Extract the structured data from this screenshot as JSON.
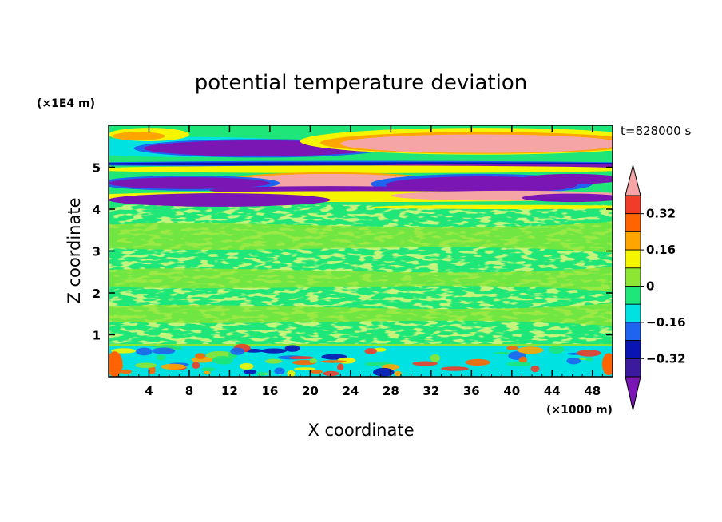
{
  "chart_data": {
    "type": "heatmap",
    "title": "potential temperature deviation",
    "xlabel": "X coordinate",
    "ylabel": "Z coordinate",
    "x_unit": "(×1000 m)",
    "y_unit": "(×1E4 m)",
    "time_label": "t=828000 s",
    "xlim": [
      0,
      50
    ],
    "ylim": [
      0,
      6
    ],
    "x_ticks": [
      "4",
      "8",
      "12",
      "16",
      "20",
      "24",
      "28",
      "32",
      "36",
      "40",
      "44",
      "48"
    ],
    "y_ticks": [
      "1",
      "2",
      "3",
      "4",
      "5"
    ],
    "colorbar": {
      "levels": [
        -0.4,
        -0.32,
        -0.24,
        -0.16,
        -0.08,
        0,
        0.08,
        0.16,
        0.24,
        0.32,
        0.4
      ],
      "labels": [
        "0.32",
        "0.16",
        "0",
        "−0.16",
        "−0.32"
      ],
      "colors": {
        "below": "#7a16b4",
        "b1": "#3c1a9e",
        "b2": "#0a14b4",
        "b3": "#1e64f0",
        "b4": "#00e1e1",
        "b5": "#1ee678",
        "b6": "#8ce632",
        "b7": "#f5f500",
        "b8": "#ffa500",
        "b9": "#ff6400",
        "b10": "#f03c28",
        "above": "#f5a5a5"
      }
    }
  }
}
